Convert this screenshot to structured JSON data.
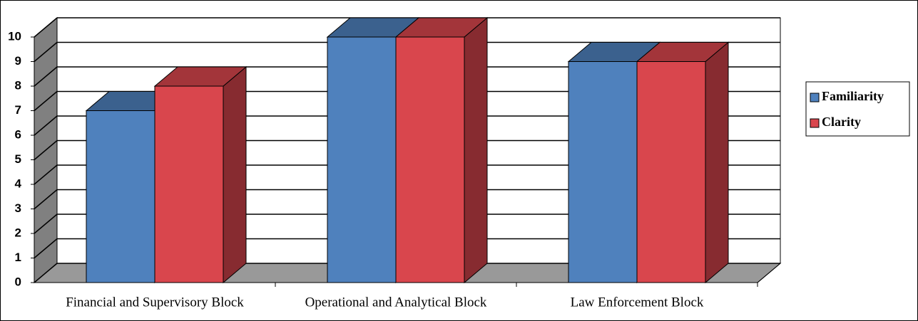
{
  "chart_data": {
    "type": "bar3d",
    "categories": [
      "Financial and Supervisory Block",
      "Operational and Analytical Block",
      "Law Enforcement Block"
    ],
    "series": [
      {
        "name": "Familiarity",
        "color": "#4f81bd",
        "values": [
          7,
          10,
          9
        ]
      },
      {
        "name": "Clarity",
        "color": "#d9464d",
        "values": [
          8,
          10,
          9
        ]
      }
    ],
    "ylim": [
      0,
      10
    ],
    "yticks": [
      0,
      1,
      2,
      3,
      4,
      5,
      6,
      7,
      8,
      9,
      10
    ],
    "grid": true,
    "legend": "right"
  }
}
